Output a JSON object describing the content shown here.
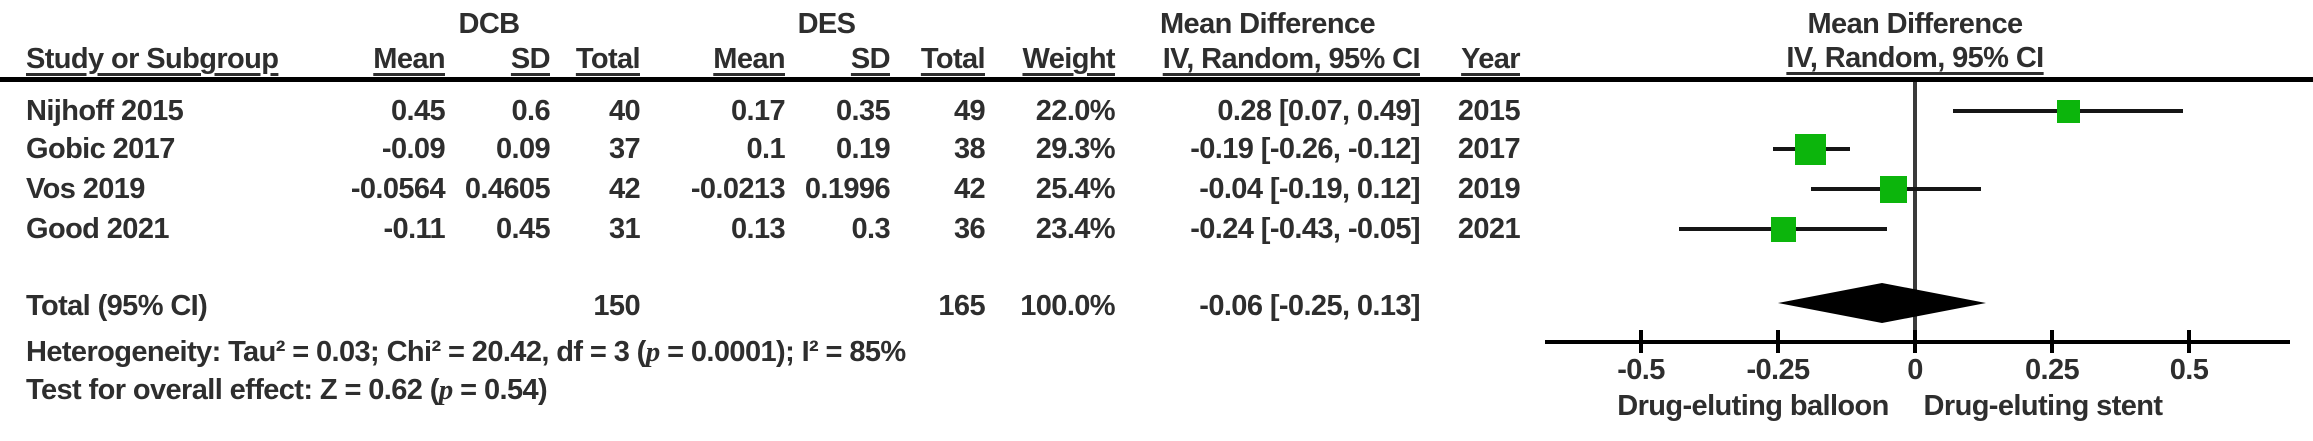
{
  "table": {
    "group_headers": {
      "dcb": "DCB",
      "des": "DES",
      "mean_difference": "Mean Difference"
    },
    "col_headers": {
      "study": "Study or Subgroup",
      "dcb_mean": "Mean",
      "dcb_sd": "SD",
      "dcb_total": "Total",
      "des_mean": "Mean",
      "des_sd": "SD",
      "des_total": "Total",
      "weight": "Weight",
      "ci": "IV, Random, 95% CI",
      "year": "Year"
    },
    "rows": [
      [
        "Nijhoff 2015",
        "0.45",
        "0.6",
        "40",
        "0.17",
        "0.35",
        "49",
        "22.0%",
        "0.28 [0.07, 0.49]",
        "2015"
      ],
      [
        "Gobic 2017",
        "-0.09",
        "0.09",
        "37",
        "0.1",
        "0.19",
        "38",
        "29.3%",
        "-0.19 [-0.26, -0.12]",
        "2017"
      ],
      [
        "Vos 2019",
        "-0.0564",
        "0.4605",
        "42",
        "-0.0213",
        "0.1996",
        "42",
        "25.4%",
        "-0.04 [-0.19, 0.12]",
        "2019"
      ],
      [
        "Good 2021",
        "-0.11",
        "0.45",
        "31",
        "0.13",
        "0.3",
        "36",
        "23.4%",
        "-0.24 [-0.43, -0.05]",
        "2021"
      ]
    ],
    "total_row": [
      "Total (95% CI)",
      "",
      "",
      "150",
      "",
      "",
      "165",
      "100.0%",
      "-0.06 [-0.25, 0.13]",
      ""
    ],
    "heterogeneity": {
      "pre": "Heterogeneity: Tau² = 0.03; Chi² = 20.42, df = 3 (",
      "p": "p",
      "post": " = 0.0001); I² = 85%"
    },
    "overall_effect": {
      "pre": "Test for overall effect: Z = 0.62 (",
      "p": "p",
      "post": " = 0.54)"
    }
  },
  "plot": {
    "header_line1": "Mean Difference",
    "header_line2": "IV, Random, 95% CI"
  },
  "chart_data": {
    "type": "scatter",
    "subtype": "forest-plot",
    "title": "Mean Difference",
    "effect_measure": "IV, Random, 95% CI",
    "studies": [
      {
        "label": "Nijhoff 2015",
        "year": 2015,
        "dcb": {
          "mean": 0.45,
          "sd": 0.6,
          "total": 40
        },
        "des": {
          "mean": 0.17,
          "sd": 0.35,
          "total": 49
        },
        "weight_pct": 22.0,
        "mean_diff": 0.28,
        "ci_lower": 0.07,
        "ci_upper": 0.49
      },
      {
        "label": "Gobic 2017",
        "year": 2017,
        "dcb": {
          "mean": -0.09,
          "sd": 0.09,
          "total": 37
        },
        "des": {
          "mean": 0.1,
          "sd": 0.19,
          "total": 38
        },
        "weight_pct": 29.3,
        "mean_diff": -0.19,
        "ci_lower": -0.26,
        "ci_upper": -0.12
      },
      {
        "label": "Vos 2019",
        "year": 2019,
        "dcb": {
          "mean": -0.0564,
          "sd": 0.4605,
          "total": 42
        },
        "des": {
          "mean": -0.0213,
          "sd": 0.1996,
          "total": 42
        },
        "weight_pct": 25.4,
        "mean_diff": -0.04,
        "ci_lower": -0.19,
        "ci_upper": 0.12
      },
      {
        "label": "Good 2021",
        "year": 2021,
        "dcb": {
          "mean": -0.11,
          "sd": 0.45,
          "total": 31
        },
        "des": {
          "mean": 0.13,
          "sd": 0.3,
          "total": 36
        },
        "weight_pct": 23.4,
        "mean_diff": -0.24,
        "ci_lower": -0.43,
        "ci_upper": -0.05
      }
    ],
    "total": {
      "label": "Total (95% CI)",
      "dcb_total": 150,
      "des_total": 165,
      "weight_pct": 100.0,
      "mean_diff": -0.06,
      "ci_lower": -0.25,
      "ci_upper": 0.13
    },
    "heterogeneity": {
      "tau2": 0.03,
      "chi2": 20.42,
      "df": 3,
      "p": "0.0001",
      "i2_pct": 85
    },
    "overall_effect": {
      "z": 0.62,
      "p": 0.54
    },
    "x_ticks": [
      -0.5,
      -0.25,
      0,
      0.25,
      0.5
    ],
    "x_tick_labels": [
      "-0.5",
      "-0.25",
      "0",
      "0.25",
      "0.5"
    ],
    "xlim": [
      -0.68,
      0.69
    ],
    "left_caption": "Drug-eluting balloon",
    "right_caption": "Drug-eluting stent",
    "grid": false,
    "legend": false
  },
  "colors": {
    "marker_green": "#0cb50c",
    "diamond_black": "#000000",
    "text": "#2e2e2e",
    "line": "#161616"
  }
}
